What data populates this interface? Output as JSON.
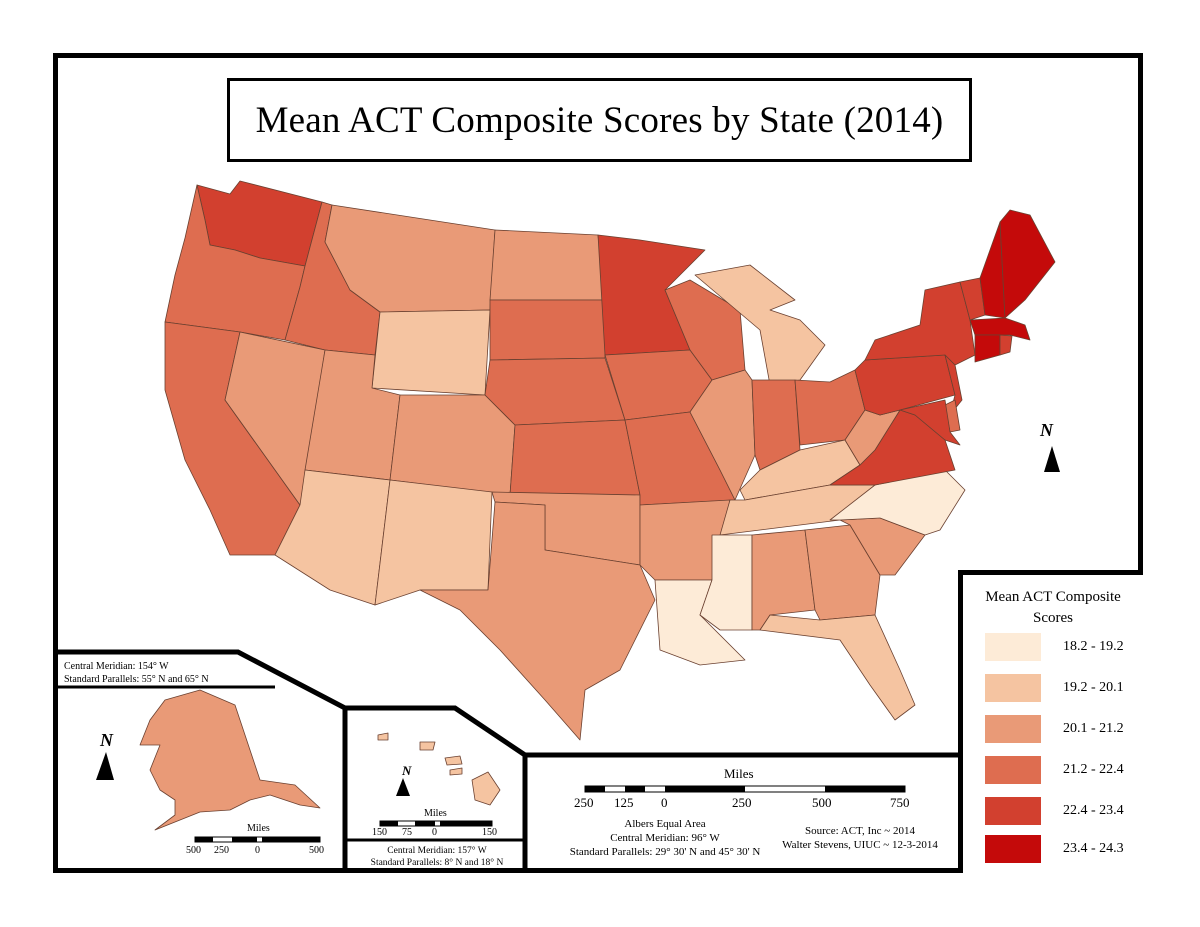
{
  "title": "Mean ACT Composite Scores by State (2014)",
  "legend": {
    "title_line1": "Mean ACT Composite",
    "title_line2": "Scores",
    "classes": [
      {
        "label": "18.2 - 19.2",
        "color": "#fdebd7"
      },
      {
        "label": "19.2 - 20.1",
        "color": "#f5c4a1"
      },
      {
        "label": "20.1 - 21.2",
        "color": "#e99a77"
      },
      {
        "label": "21.2 - 22.4",
        "color": "#de6d50"
      },
      {
        "label": "22.4 - 23.4",
        "color": "#d2402f"
      },
      {
        "label": "23.4 - 24.3",
        "color": "#c40a0a"
      }
    ]
  },
  "alaska_inset": {
    "line1": "Central Meridian: 154° W",
    "line2": "Standard Parallels: 55° N and 65° N",
    "scale_title": "Miles",
    "scale_ticks": [
      "500",
      "250",
      "0",
      "500"
    ]
  },
  "hawaii_inset": {
    "scale_title": "Miles",
    "scale_ticks": [
      "150",
      "75",
      "0",
      "150"
    ],
    "line1": "Central Meridian: 157° W",
    "line2": "Standard Parallels: 8° N and 18° N"
  },
  "main_scale": {
    "title": "Miles",
    "ticks": [
      "250",
      "125",
      "0",
      "250",
      "500",
      "750"
    ]
  },
  "projection": {
    "line1": "Albers Equal Area",
    "line2": "Central Meridian: 96° W",
    "line3": "Standard Parallels: 29° 30' N and 45° 30' N"
  },
  "source": {
    "line1": "Source: ACT, Inc ~ 2014",
    "line2": "Walter Stevens, UIUC ~ 12-3-2014"
  },
  "north_arrow_label": "N",
  "states": {
    "WA": 4,
    "OR": 3,
    "CA": 3,
    "ID": 3,
    "NV": 2,
    "MT": 2,
    "WY": 1,
    "UT": 2,
    "AZ": 1,
    "CO": 2,
    "NM": 1,
    "ND": 2,
    "SD": 3,
    "NE": 3,
    "KS": 3,
    "OK": 2,
    "TX": 2,
    "MN": 4,
    "IA": 3,
    "MO": 3,
    "AR": 2,
    "LA": 0,
    "WI": 3,
    "IL": 2,
    "MI": 1,
    "IN": 3,
    "OH": 3,
    "KY": 1,
    "TN": 1,
    "MS": 0,
    "AL": 2,
    "GA": 2,
    "FL": 1,
    "SC": 2,
    "NC": 0,
    "VA": 4,
    "WV": 2,
    "PA": 4,
    "NY": 4,
    "NJ": 4,
    "DE": 3,
    "MD": 4,
    "VT": 4,
    "NH": 5,
    "ME": 5,
    "MA": 5,
    "CT": 5,
    "RI": 4,
    "AK": 2,
    "HI": 1
  }
}
